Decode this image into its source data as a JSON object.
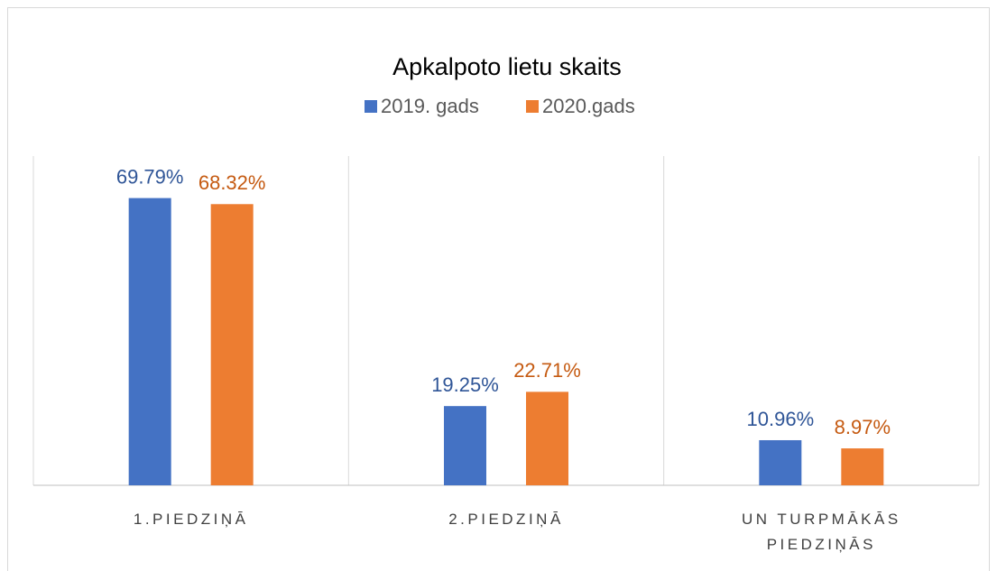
{
  "chart_data": {
    "type": "bar",
    "title": "Apkalpoto lietu skaits",
    "categories": [
      "1.PIEDZIŅĀ",
      "2.PIEDZIŅĀ",
      "UN TURPMĀKĀS PIEDZIŅĀS"
    ],
    "series": [
      {
        "name": "2019. gads",
        "color": "#4472c4",
        "label_color": "#2f5597",
        "values": [
          69.79,
          19.25,
          10.96
        ],
        "value_labels": [
          "69.79%",
          "19.25%",
          "10.96%"
        ]
      },
      {
        "name": "2020.gads",
        "color": "#ed7d31",
        "label_color": "#c55a11",
        "values": [
          68.32,
          22.71,
          8.97
        ],
        "value_labels": [
          "68.32%",
          "22.71%",
          "8.97%"
        ]
      }
    ],
    "ylim": [
      0,
      80
    ],
    "legend": "top"
  }
}
